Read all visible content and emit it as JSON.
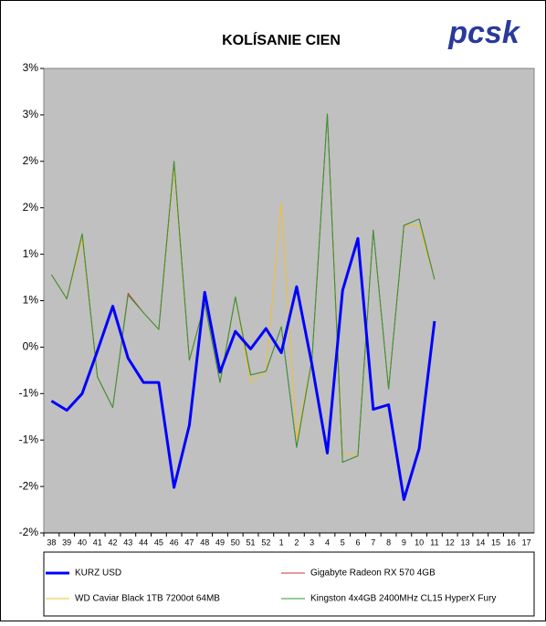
{
  "chart_data": {
    "type": "line",
    "title": "KOLÍSANIE CIEN",
    "logo": "pcsk",
    "categories": [
      "38",
      "39",
      "40",
      "41",
      "42",
      "43",
      "44",
      "45",
      "46",
      "47",
      "48",
      "49",
      "50",
      "51",
      "52",
      "1",
      "2",
      "3",
      "4",
      "5",
      "6",
      "7",
      "8",
      "9",
      "10",
      "11",
      "12",
      "13",
      "14",
      "15",
      "16",
      "17"
    ],
    "ylim": [
      -2,
      3
    ],
    "yticks": [
      {
        "value": -2,
        "label": "-2%"
      },
      {
        "value": -1.5,
        "label": "-2%"
      },
      {
        "value": -1,
        "label": "-1%"
      },
      {
        "value": -0.5,
        "label": "-1%"
      },
      {
        "value": 0,
        "label": "0%"
      },
      {
        "value": 0.5,
        "label": "1%"
      },
      {
        "value": 1,
        "label": "1%"
      },
      {
        "value": 1.5,
        "label": "2%"
      },
      {
        "value": 2,
        "label": "2%"
      },
      {
        "value": 2.5,
        "label": "3%"
      },
      {
        "value": 3,
        "label": "3%"
      }
    ],
    "grid": false,
    "series": [
      {
        "name": "KURZ USD",
        "color": "#0000ff",
        "values": [
          -0.58,
          -0.68,
          -0.5,
          -0.04,
          0.44,
          -0.12,
          -0.38,
          -0.38,
          -1.51,
          -0.84,
          0.59,
          -0.27,
          0.17,
          -0.02,
          0.2,
          -0.06,
          0.65,
          -0.19,
          -1.14,
          0.61,
          1.17,
          -0.67,
          -0.62,
          -1.64,
          -1.09,
          0.28,
          null,
          null,
          null,
          null,
          null,
          null
        ]
      },
      {
        "name": "Gigabyte Radeon RX 570 4GB",
        "color": "#d03030",
        "values": [
          0.78,
          0.52,
          1.22,
          -0.32,
          -0.65,
          0.58,
          0.37,
          0.19,
          2.0,
          -0.14,
          0.47,
          -0.38,
          0.54,
          -0.3,
          -0.26,
          0.22,
          -1.08,
          -0.13,
          2.51,
          -1.24,
          -1.17,
          1.26,
          -0.45,
          1.31,
          1.38,
          0.73,
          null,
          null,
          null,
          null,
          null,
          null
        ]
      },
      {
        "name": "WD Caviar Black 1TB 7200ot 64MB",
        "color": "#f0c030",
        "values": [
          0.78,
          0.52,
          1.17,
          -0.32,
          -0.65,
          0.56,
          0.37,
          0.19,
          1.93,
          -0.14,
          0.47,
          -0.38,
          0.54,
          -0.38,
          -0.26,
          1.55,
          -0.99,
          -0.13,
          2.51,
          -1.14,
          -1.17,
          1.26,
          -0.45,
          1.31,
          1.31,
          0.73,
          null,
          null,
          null,
          null,
          null,
          null
        ]
      },
      {
        "name": "Kingston 4x4GB 2400MHz CL15 HyperX Fury",
        "color": "#2e9a3a",
        "values": [
          0.78,
          0.52,
          1.22,
          -0.32,
          -0.65,
          0.56,
          0.37,
          0.19,
          2.0,
          -0.14,
          0.47,
          -0.38,
          0.54,
          -0.3,
          -0.26,
          0.22,
          -1.08,
          -0.13,
          2.51,
          -1.24,
          -1.17,
          1.26,
          -0.45,
          1.31,
          1.38,
          0.73,
          null,
          null,
          null,
          null,
          null,
          null
        ]
      }
    ]
  }
}
